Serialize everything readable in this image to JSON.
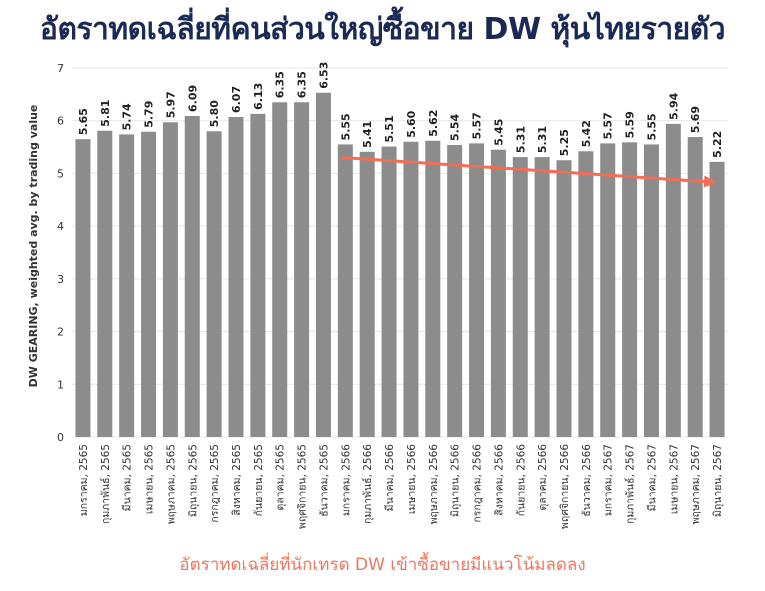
{
  "headline": "อัตราทดเฉลี่ยที่คนส่วนใหญ่ซื้อขาย DW หุ้นไทยรายตัว",
  "footnote": "อัตราทดเฉลี่ยที่นักเทรด DW เข้าซื้อขายมีแนวโน้มลดลง",
  "colors": {
    "bar": "#8c8c8c",
    "trend": "#f26d55",
    "title": "#1b2a55",
    "grid": "#e6e6e6"
  },
  "chart_data": {
    "type": "bar",
    "title": "",
    "xlabel": "",
    "ylabel": "DW GEARING, weighted avg. by trading value",
    "ylim": [
      0,
      7
    ],
    "yticks": [
      0,
      1,
      2,
      3,
      4,
      5,
      6,
      7
    ],
    "grid": true,
    "categories": [
      "มกราคม, 2565",
      "กุมภาพันธ์, 2565",
      "มีนาคม, 2565",
      "เมษายน, 2565",
      "พฤษภาคม, 2565",
      "มิถุนายน, 2565",
      "กรกฎาคม, 2565",
      "สิงหาคม, 2565",
      "กันยายน, 2565",
      "ตุลาคม, 2565",
      "พฤศจิกายน, 2565",
      "ธันวาคม, 2565",
      "มกราคม, 2566",
      "กุมภาพันธ์, 2566",
      "มีนาคม, 2566",
      "เมษายน, 2566",
      "พฤษภาคม, 2566",
      "มิถุนายน, 2566",
      "กรกฎาคม, 2566",
      "สิงหาคม, 2566",
      "กันยายน, 2566",
      "ตุลาคม, 2566",
      "พฤศจิกายน, 2566",
      "ธันวาคม, 2566",
      "มกราคม, 2567",
      "กุมภาพันธ์, 2567",
      "มีนาคม, 2567",
      "เมษายน, 2567",
      "พฤษภาคม, 2567",
      "มิถุนายน, 2567"
    ],
    "values": [
      5.65,
      5.81,
      5.74,
      5.79,
      5.97,
      6.09,
      5.8,
      6.07,
      6.13,
      6.35,
      6.35,
      6.53,
      5.55,
      5.41,
      5.51,
      5.6,
      5.62,
      5.54,
      5.57,
      5.45,
      5.31,
      5.31,
      5.25,
      5.42,
      5.57,
      5.59,
      5.55,
      5.94,
      5.69,
      5.22
    ],
    "value_labels": [
      "5.65",
      "5.81",
      "5.74",
      "5.79",
      "5.97",
      "6.09",
      "5.80",
      "6.07",
      "6.13",
      "6.35",
      "6.35",
      "6.53",
      "5.55",
      "5.41",
      "5.51",
      "5.60",
      "5.62",
      "5.54",
      "5.57",
      "5.45",
      "5.31",
      "5.31",
      "5.25",
      "5.42",
      "5.57",
      "5.59",
      "5.55",
      "5.94",
      "5.69",
      "5.22"
    ],
    "trend_arrow": {
      "from_index": 12,
      "to_index": 29,
      "from_value": 5.3,
      "to_value": 4.83
    }
  }
}
